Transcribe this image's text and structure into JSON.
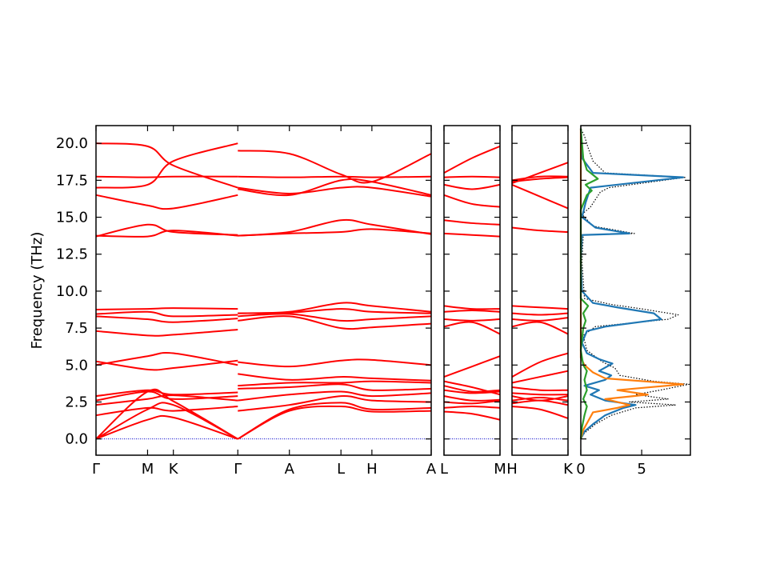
{
  "chart_data": {
    "type": "line",
    "ylabel": "Frequency (THz)",
    "ylim": [
      -1.1,
      21.2
    ],
    "yticks": [
      "0.0",
      "2.5",
      "5.0",
      "7.5",
      "10.0",
      "12.5",
      "15.0",
      "17.5",
      "20.0"
    ],
    "ytick_values": [
      0,
      2.5,
      5,
      7.5,
      10,
      12.5,
      15,
      17.5,
      20
    ],
    "band_color": "#ff0000",
    "zero_line_color": "#0000cc",
    "panels": [
      {
        "ticks": [
          "Γ",
          "M",
          "K",
          "Γ",
          "A",
          "L",
          "H",
          "A"
        ],
        "segments": [
          {
            "from": "Γ",
            "to": "Γ",
            "k": [
              0,
              1,
              1.5,
              2.75
            ],
            "bands": [
              [
                0,
                1.3,
                1.45,
                0
              ],
              [
                0,
                2.0,
                2.3,
                0
              ],
              [
                0,
                3.2,
                2.55,
                0
              ],
              [
                1.6,
                2.1,
                1.9,
                2.2
              ],
              [
                2.3,
                2.7,
                2.95,
                2.6
              ],
              [
                2.6,
                3.2,
                2.7,
                2.9
              ],
              [
                2.9,
                3.3,
                3.0,
                3.15
              ],
              [
                5.0,
                5.6,
                5.8,
                5.0
              ],
              [
                5.25,
                4.7,
                4.8,
                5.3
              ],
              [
                7.3,
                7.0,
                7.05,
                7.4
              ],
              [
                8.3,
                8.1,
                7.9,
                8.15
              ],
              [
                8.45,
                8.6,
                8.3,
                8.4
              ],
              [
                8.75,
                8.8,
                8.85,
                8.8
              ],
              [
                13.7,
                14.5,
                14.0,
                13.8
              ],
              [
                13.75,
                13.7,
                14.1,
                13.75
              ],
              [
                16.5,
                15.8,
                15.6,
                16.5
              ],
              [
                17.0,
                17.2,
                18.8,
                20.0
              ],
              [
                17.75,
                17.7,
                17.75,
                17.75
              ],
              [
                20.0,
                19.8,
                18.5,
                17.0
              ]
            ]
          },
          {
            "from": "Γ",
            "to": "A",
            "k": [
              2.75,
              3.75,
              4.75,
              5.35,
              6.5
            ],
            "bands": [
              [
                0,
                1.9,
                2.2,
                1.85,
                1.9
              ],
              [
                0,
                2.0,
                2.45,
                2.0,
                2.1
              ],
              [
                1.9,
                2.3,
                2.9,
                2.6,
                2.5
              ],
              [
                2.6,
                3.0,
                3.2,
                2.9,
                3.1
              ],
              [
                3.4,
                3.5,
                3.7,
                3.3,
                3.4
              ],
              [
                3.6,
                3.8,
                3.8,
                3.9,
                3.8
              ],
              [
                4.4,
                4.0,
                4.2,
                4.1,
                3.95
              ],
              [
                5.2,
                4.9,
                5.3,
                5.35,
                5.0
              ],
              [
                8.0,
                8.3,
                7.5,
                7.55,
                7.8
              ],
              [
                8.3,
                8.45,
                8.0,
                8.1,
                8.3
              ],
              [
                8.5,
                8.55,
                8.8,
                8.6,
                8.5
              ],
              [
                8.5,
                8.6,
                9.2,
                9.0,
                8.6
              ],
              [
                13.75,
                13.9,
                14.0,
                14.2,
                13.9
              ],
              [
                13.75,
                14.0,
                14.8,
                14.5,
                13.85
              ],
              [
                16.9,
                16.5,
                17.5,
                17.4,
                16.5
              ],
              [
                17.0,
                16.6,
                17.0,
                17.0,
                16.4
              ],
              [
                17.75,
                17.7,
                17.75,
                17.7,
                17.75
              ],
              [
                19.5,
                19.3,
                17.9,
                17.4,
                19.3
              ]
            ]
          }
        ]
      },
      {
        "ticks": [
          "L",
          "M"
        ],
        "segments": [
          {
            "from": "L",
            "to": "M",
            "k": [
              0,
              0.5,
              1
            ],
            "bands": [
              [
                1.85,
                1.7,
                1.3
              ],
              [
                2.1,
                2.2,
                2.1
              ],
              [
                2.5,
                2.4,
                2.6
              ],
              [
                2.9,
                2.6,
                2.65
              ],
              [
                3.3,
                3.1,
                3.2
              ],
              [
                3.6,
                3.2,
                3.3
              ],
              [
                3.9,
                3.5,
                3.0
              ],
              [
                4.2,
                4.9,
                5.6
              ],
              [
                7.6,
                7.9,
                7.1
              ],
              [
                8.1,
                8.0,
                8.1
              ],
              [
                8.6,
                8.7,
                8.6
              ],
              [
                9.0,
                8.8,
                8.8
              ],
              [
                13.9,
                13.8,
                13.7
              ],
              [
                14.8,
                14.6,
                14.5
              ],
              [
                16.5,
                15.9,
                15.7
              ],
              [
                17.2,
                16.9,
                17.2
              ],
              [
                17.7,
                17.75,
                17.7
              ],
              [
                18.0,
                19.0,
                19.8
              ]
            ]
          }
        ]
      },
      {
        "ticks": [
          "H",
          "K"
        ],
        "segments": [
          {
            "from": "H",
            "to": "K",
            "k": [
              0,
              0.5,
              1
            ],
            "bands": [
              [
                2.2,
                2.0,
                1.4
              ],
              [
                2.4,
                2.6,
                2.3
              ],
              [
                2.6,
                2.8,
                2.6
              ],
              [
                2.9,
                2.6,
                2.9
              ],
              [
                3.1,
                3.0,
                3.0
              ],
              [
                3.5,
                3.3,
                3.3
              ],
              [
                3.8,
                4.2,
                4.6
              ],
              [
                4.2,
                5.2,
                5.8
              ],
              [
                7.6,
                7.9,
                7.1
              ],
              [
                8.1,
                8.0,
                8.2
              ],
              [
                8.5,
                8.4,
                8.5
              ],
              [
                9.0,
                8.9,
                8.8
              ],
              [
                14.3,
                14.1,
                14.0
              ],
              [
                17.2,
                16.4,
                15.6
              ],
              [
                17.4,
                17.6,
                17.7
              ],
              [
                17.5,
                17.75,
                17.75
              ],
              [
                17.3,
                18.0,
                18.7
              ]
            ]
          }
        ]
      }
    ],
    "dos": {
      "xlim": [
        0,
        9
      ],
      "xticks": [
        "0",
        "5"
      ],
      "xtick_values": [
        0,
        5
      ],
      "series": [
        {
          "color": "#000000",
          "style": "dotted",
          "points": [
            [
              0,
              0
            ],
            [
              0.3,
              0.4
            ],
            [
              1.2,
              1.0
            ],
            [
              2.5,
              1.6
            ],
            [
              4.5,
              2.1
            ],
            [
              7.8,
              2.3
            ],
            [
              4.0,
              2.5
            ],
            [
              7.2,
              2.7
            ],
            [
              4.5,
              3.0
            ],
            [
              6.5,
              3.3
            ],
            [
              8.9,
              3.7
            ],
            [
              6.0,
              3.9
            ],
            [
              3.2,
              4.3
            ],
            [
              2.8,
              4.8
            ],
            [
              1.8,
              5.2
            ],
            [
              0.5,
              6.0
            ],
            [
              0.2,
              7.0
            ],
            [
              1.2,
              7.6
            ],
            [
              7.2,
              8.1
            ],
            [
              8.0,
              8.4
            ],
            [
              5.0,
              8.8
            ],
            [
              2.5,
              9.1
            ],
            [
              0.3,
              9.5
            ],
            [
              0.1,
              12.0
            ],
            [
              0.2,
              13.8
            ],
            [
              4.4,
              13.9
            ],
            [
              1.0,
              14.4
            ],
            [
              0.1,
              15.2
            ],
            [
              0.8,
              15.7
            ],
            [
              1.6,
              16.7
            ],
            [
              2.3,
              17.0
            ],
            [
              8.6,
              17.7
            ],
            [
              2.0,
              18.0
            ],
            [
              1.0,
              18.8
            ],
            [
              0.6,
              19.7
            ],
            [
              0.3,
              20.5
            ],
            [
              0,
              21
            ]
          ]
        },
        {
          "color": "#1f77b4",
          "style": "solid",
          "points": [
            [
              0,
              0
            ],
            [
              0.3,
              0.5
            ],
            [
              1.0,
              1.0
            ],
            [
              2.0,
              1.6
            ],
            [
              3.5,
              2.1
            ],
            [
              4.5,
              2.3
            ],
            [
              2.0,
              2.6
            ],
            [
              0.8,
              3.0
            ],
            [
              1.5,
              3.3
            ],
            [
              0.3,
              3.6
            ],
            [
              2.0,
              4.0
            ],
            [
              2.5,
              4.3
            ],
            [
              1.5,
              4.6
            ],
            [
              2.6,
              5.1
            ],
            [
              1.5,
              5.4
            ],
            [
              0.5,
              5.8
            ],
            [
              0.1,
              6.5
            ],
            [
              0.5,
              7.3
            ],
            [
              2.0,
              7.6
            ],
            [
              6.6,
              8.1
            ],
            [
              6.0,
              8.5
            ],
            [
              3.0,
              8.9
            ],
            [
              1.0,
              9.2
            ],
            [
              0.1,
              10.0
            ],
            [
              0,
              12.0
            ],
            [
              0.1,
              13.8
            ],
            [
              4.0,
              13.9
            ],
            [
              1.2,
              14.3
            ],
            [
              0.1,
              15.0
            ],
            [
              0.4,
              16.0
            ],
            [
              0.8,
              17.0
            ],
            [
              8.4,
              17.7
            ],
            [
              1.0,
              18.0
            ],
            [
              0.1,
              19.0
            ],
            [
              0,
              21
            ]
          ]
        },
        {
          "color": "#ff7f0e",
          "style": "solid",
          "points": [
            [
              0,
              0
            ],
            [
              0.2,
              0.6
            ],
            [
              0.6,
              1.2
            ],
            [
              1.0,
              1.8
            ],
            [
              3.0,
              2.1
            ],
            [
              4.0,
              2.3
            ],
            [
              2.0,
              2.7
            ],
            [
              5.5,
              3.0
            ],
            [
              3.0,
              3.3
            ],
            [
              8.4,
              3.7
            ],
            [
              2.0,
              4.1
            ],
            [
              1.0,
              4.5
            ],
            [
              0.3,
              5.0
            ],
            [
              0,
              5.5
            ],
            [
              0,
              21
            ]
          ]
        },
        {
          "color": "#2ca02c",
          "style": "solid",
          "points": [
            [
              0,
              0
            ],
            [
              0.1,
              0.8
            ],
            [
              0.3,
              1.6
            ],
            [
              0.5,
              2.2
            ],
            [
              0.2,
              2.7
            ],
            [
              0.5,
              3.3
            ],
            [
              0.3,
              4.0
            ],
            [
              0.5,
              4.6
            ],
            [
              0.2,
              5.0
            ],
            [
              0,
              6.0
            ],
            [
              0.2,
              7.5
            ],
            [
              0.4,
              8.0
            ],
            [
              0.2,
              8.5
            ],
            [
              0.6,
              9.0
            ],
            [
              0,
              9.5
            ],
            [
              0,
              15.5
            ],
            [
              0.5,
              16.5
            ],
            [
              0.9,
              16.8
            ],
            [
              0.4,
              17.2
            ],
            [
              1.4,
              17.6
            ],
            [
              0.5,
              18.2
            ],
            [
              0.2,
              19.0
            ],
            [
              0.1,
              20.0
            ],
            [
              0,
              21
            ]
          ]
        }
      ]
    }
  }
}
